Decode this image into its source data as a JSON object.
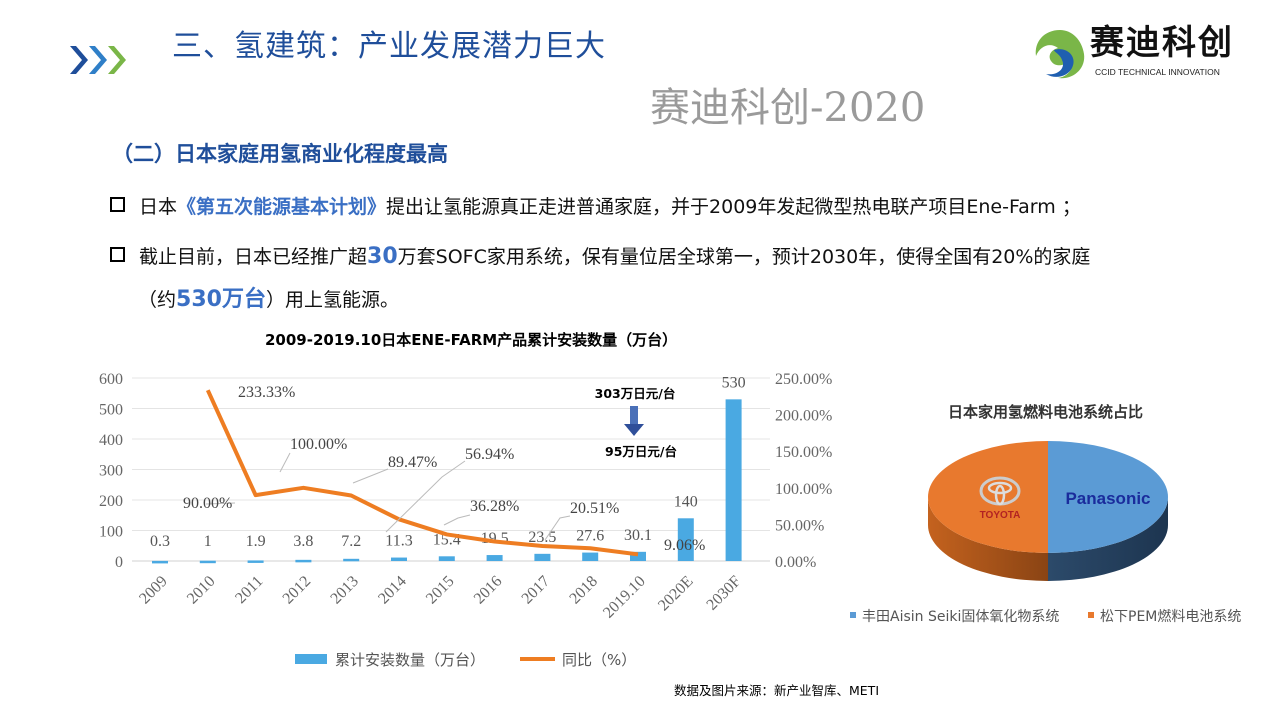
{
  "header": {
    "title": "三、氢建筑：产业发展潜力巨大",
    "logo_cn": "赛迪科创",
    "logo_en": "CCID TECHNICAL INNOVATION"
  },
  "subtitle": "（二）日本家庭用氢商业化程度最高",
  "bullets": [
    {
      "pre": "日本",
      "highlight": "《第五次能源基本计划》",
      "post": "提出让氢能源真正走进普通家庭，并于2009年发起微型热电联产项目Ene-Farm ；"
    },
    {
      "pre": "截止目前，日本已经推广超",
      "highlight": "30",
      "mid": "万套SOFC家用系统，保有量位居全球第一，预计2030年，使得全国有20%的家庭",
      "line2_pre": "（约",
      "highlight2": "530万台",
      "line2_post": "）用上氢能源。"
    }
  ],
  "watermark": "赛迪科创-2020",
  "source": "数据及图片来源：新产业智库、METI",
  "chart_data": [
    {
      "type": "bar+line",
      "title": "2009-2019.10日本ENE-FARM产品累计安装数量（万台）",
      "categories": [
        "2009",
        "2010",
        "2011",
        "2012",
        "2013",
        "2014",
        "2015",
        "2016",
        "2017",
        "2018",
        "2019.10",
        "2020E",
        "2030F"
      ],
      "series": [
        {
          "name": "累计安装数量（万台）",
          "type": "bar",
          "axis": "left",
          "color": "#4aa9e2",
          "values": [
            0.3,
            1,
            1.9,
            3.8,
            7.2,
            11.3,
            15.4,
            19.5,
            23.5,
            27.6,
            30.1,
            140,
            530
          ],
          "labels": [
            "0.3",
            "1",
            "1.9",
            "3.8",
            "7.2",
            "11.3",
            "15.4",
            "19.5",
            "23.5",
            "27.6",
            "30.1",
            "140",
            "530"
          ]
        },
        {
          "name": "同比（%）",
          "type": "line",
          "axis": "right",
          "color": "#ee7d22",
          "values": [
            null,
            233.33,
            90.0,
            100.0,
            89.47,
            56.94,
            36.28,
            26.6,
            20.51,
            17.4,
            9.06,
            null,
            null
          ],
          "labels": [
            null,
            "233.33%",
            "90.00%",
            "100.00%",
            "89.47%",
            "56.94%",
            "36.28%",
            null,
            "20.51%",
            null,
            "9.06%",
            null,
            null
          ]
        }
      ],
      "left_axis": {
        "ylim": [
          0,
          600
        ],
        "ticks": [
          "0",
          "100",
          "200",
          "300",
          "400",
          "500",
          "600"
        ]
      },
      "right_axis": {
        "ylim": [
          0,
          250
        ],
        "ticks": [
          "0.00%",
          "50.00%",
          "100.00%",
          "150.00%",
          "200.00%",
          "250.00%"
        ]
      },
      "grid": true,
      "legend": "bottom",
      "annotations": {
        "price_before": "303万日元/台",
        "price_after": "95万日元/台"
      }
    },
    {
      "type": "pie",
      "title": "日本家用氢燃料电池系统占比",
      "slices": [
        {
          "name": "丰田Aisin Seiki固体氧化物系统",
          "value": 50,
          "color": "#4a8fd0",
          "logo": "Panasonic"
        },
        {
          "name": "松下PEM燃料电池系统",
          "value": 50,
          "color": "#e8792e",
          "logo": "TOYOTA"
        }
      ],
      "legend": "bottom"
    }
  ]
}
